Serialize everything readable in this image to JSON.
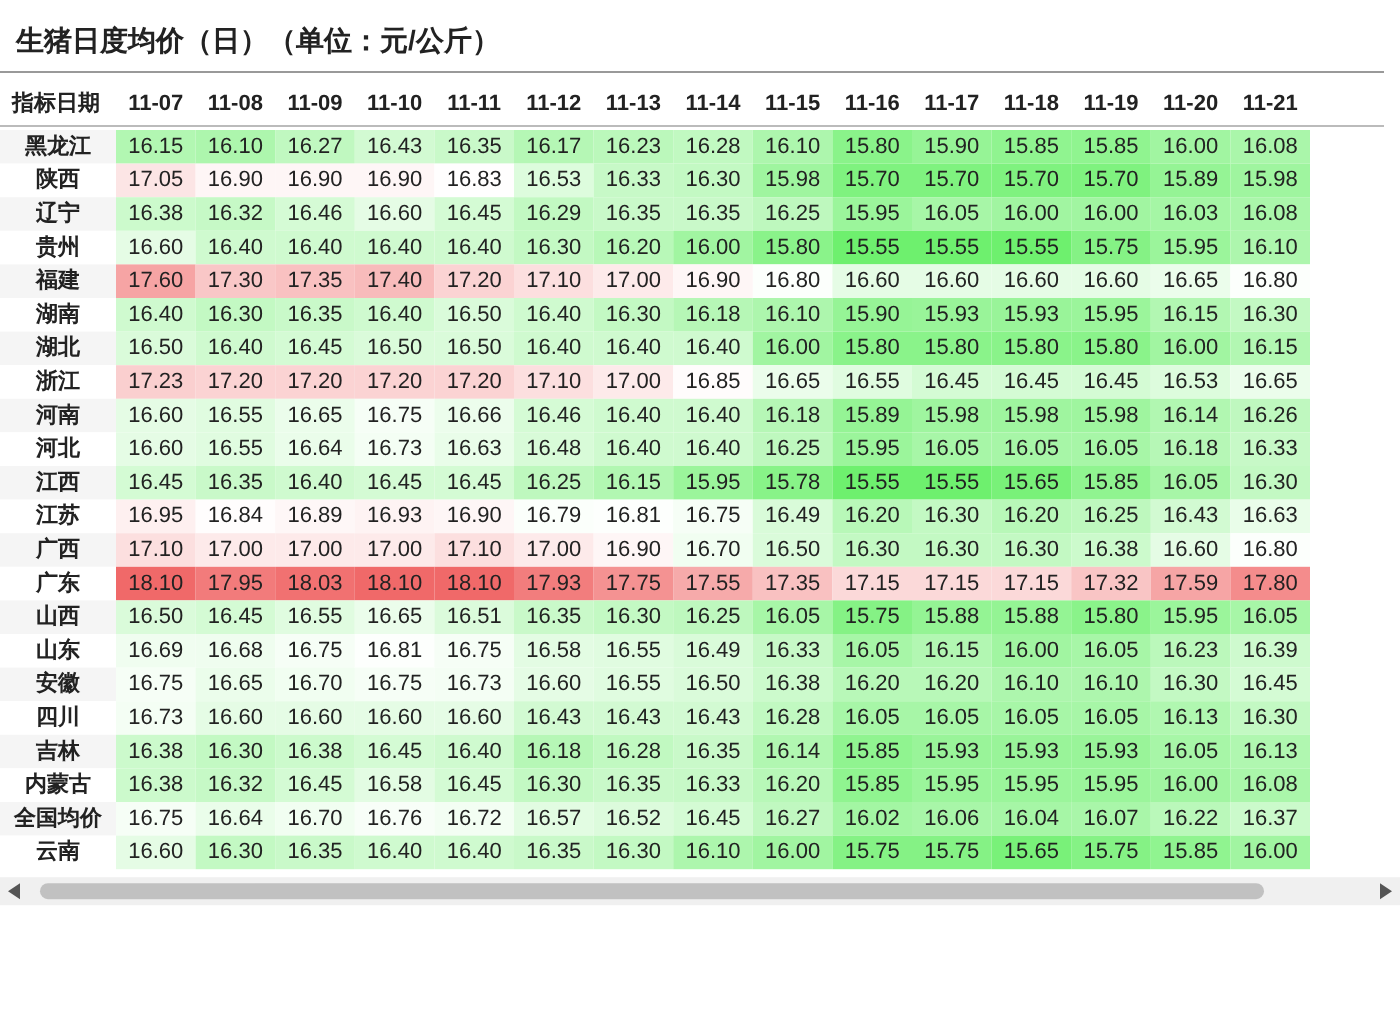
{
  "chart_data": {
    "type": "heatmap",
    "title": "生猪日度均价（日）（单位：元/公斤）",
    "ylabel": "指标日期",
    "data_labels": true,
    "categories": [
      "11-07",
      "11-08",
      "11-09",
      "11-10",
      "11-11",
      "11-12",
      "11-13",
      "11-14",
      "11-15",
      "11-16",
      "11-17",
      "11-18",
      "11-19",
      "11-20",
      "11-21"
    ],
    "y_categories": [
      "黑龙江",
      "陕西",
      "辽宁",
      "贵州",
      "福建",
      "湖南",
      "湖北",
      "浙江",
      "河南",
      "河北",
      "江西",
      "江苏",
      "广西",
      "广东",
      "山西",
      "山东",
      "安徽",
      "四川",
      "吉林",
      "内蒙古",
      "全国均价",
      "云南"
    ],
    "cells": [
      [
        16.15,
        16.1,
        16.27,
        16.43,
        16.35,
        16.17,
        16.23,
        16.28,
        16.1,
        15.8,
        15.9,
        15.85,
        15.85,
        16.0,
        16.08
      ],
      [
        17.05,
        16.9,
        16.9,
        16.9,
        16.83,
        16.53,
        16.33,
        16.3,
        15.98,
        15.7,
        15.7,
        15.7,
        15.7,
        15.89,
        15.98
      ],
      [
        16.38,
        16.32,
        16.46,
        16.6,
        16.45,
        16.29,
        16.35,
        16.35,
        16.25,
        15.95,
        16.05,
        16.0,
        16.0,
        16.03,
        16.08
      ],
      [
        16.6,
        16.4,
        16.4,
        16.4,
        16.4,
        16.3,
        16.2,
        16.0,
        15.8,
        15.55,
        15.55,
        15.55,
        15.75,
        15.95,
        16.1
      ],
      [
        17.6,
        17.3,
        17.35,
        17.4,
        17.2,
        17.1,
        17.0,
        16.9,
        16.8,
        16.6,
        16.6,
        16.6,
        16.6,
        16.65,
        16.8
      ],
      [
        16.4,
        16.3,
        16.35,
        16.4,
        16.5,
        16.4,
        16.3,
        16.18,
        16.1,
        15.9,
        15.93,
        15.93,
        15.95,
        16.15,
        16.3
      ],
      [
        16.5,
        16.4,
        16.45,
        16.5,
        16.5,
        16.4,
        16.4,
        16.4,
        16.0,
        15.8,
        15.8,
        15.8,
        15.8,
        16.0,
        16.15
      ],
      [
        17.23,
        17.2,
        17.2,
        17.2,
        17.2,
        17.1,
        17.0,
        16.85,
        16.65,
        16.55,
        16.45,
        16.45,
        16.45,
        16.53,
        16.65
      ],
      [
        16.6,
        16.55,
        16.65,
        16.75,
        16.66,
        16.46,
        16.4,
        16.4,
        16.18,
        15.89,
        15.98,
        15.98,
        15.98,
        16.14,
        16.26
      ],
      [
        16.6,
        16.55,
        16.64,
        16.73,
        16.63,
        16.48,
        16.4,
        16.4,
        16.25,
        15.95,
        16.05,
        16.05,
        16.05,
        16.18,
        16.33
      ],
      [
        16.45,
        16.35,
        16.4,
        16.45,
        16.45,
        16.25,
        16.15,
        15.95,
        15.78,
        15.55,
        15.55,
        15.65,
        15.85,
        16.05,
        16.3
      ],
      [
        16.95,
        16.84,
        16.89,
        16.93,
        16.9,
        16.79,
        16.81,
        16.75,
        16.49,
        16.2,
        16.3,
        16.2,
        16.25,
        16.43,
        16.63
      ],
      [
        17.1,
        17.0,
        17.0,
        17.0,
        17.1,
        17.0,
        16.9,
        16.7,
        16.5,
        16.3,
        16.3,
        16.3,
        16.38,
        16.6,
        16.8
      ],
      [
        18.1,
        17.95,
        18.03,
        18.1,
        18.1,
        17.93,
        17.75,
        17.55,
        17.35,
        17.15,
        17.15,
        17.15,
        17.32,
        17.59,
        17.8
      ],
      [
        16.5,
        16.45,
        16.55,
        16.65,
        16.51,
        16.35,
        16.3,
        16.25,
        16.05,
        15.75,
        15.88,
        15.88,
        15.8,
        15.95,
        16.05
      ],
      [
        16.69,
        16.68,
        16.75,
        16.81,
        16.75,
        16.58,
        16.55,
        16.49,
        16.33,
        16.05,
        16.15,
        16.0,
        16.05,
        16.23,
        16.39
      ],
      [
        16.75,
        16.65,
        16.7,
        16.75,
        16.73,
        16.6,
        16.55,
        16.5,
        16.38,
        16.2,
        16.2,
        16.1,
        16.1,
        16.3,
        16.45
      ],
      [
        16.73,
        16.6,
        16.6,
        16.6,
        16.6,
        16.43,
        16.43,
        16.43,
        16.28,
        16.05,
        16.05,
        16.05,
        16.05,
        16.13,
        16.3
      ],
      [
        16.38,
        16.3,
        16.38,
        16.45,
        16.4,
        16.18,
        16.28,
        16.35,
        16.14,
        15.85,
        15.93,
        15.93,
        15.93,
        16.05,
        16.13
      ],
      [
        16.38,
        16.32,
        16.45,
        16.58,
        16.45,
        16.3,
        16.35,
        16.33,
        16.2,
        15.85,
        15.95,
        15.95,
        15.95,
        16.0,
        16.08
      ],
      [
        16.75,
        16.64,
        16.7,
        16.76,
        16.72,
        16.57,
        16.52,
        16.45,
        16.27,
        16.02,
        16.06,
        16.04,
        16.07,
        16.22,
        16.37
      ],
      [
        16.6,
        16.3,
        16.35,
        16.4,
        16.4,
        16.35,
        16.3,
        16.1,
        16.0,
        15.75,
        15.75,
        15.65,
        15.75,
        15.85,
        16.0
      ]
    ],
    "cell_labels": [
      [
        "16.15",
        "16.10",
        "16.27",
        "16.43",
        "16.35",
        "16.17",
        "16.23",
        "16.28",
        "16.10",
        "15.80",
        "15.90",
        "15.85",
        "15.85",
        "16.00",
        "16.08"
      ],
      [
        "17.05",
        "16.90",
        "16.90",
        "16.90",
        "16.83",
        "16.53",
        "16.33",
        "16.30",
        "15.98",
        "15.70",
        "15.70",
        "15.70",
        "15.70",
        "15.89",
        "15.98"
      ],
      [
        "16.38",
        "16.32",
        "16.46",
        "16.60",
        "16.45",
        "16.29",
        "16.35",
        "16.35",
        "16.25",
        "15.95",
        "16.05",
        "16.00",
        "16.00",
        "16.03",
        "16.08"
      ],
      [
        "16.60",
        "16.40",
        "16.40",
        "16.40",
        "16.40",
        "16.30",
        "16.20",
        "16.00",
        "15.80",
        "15.55",
        "15.55",
        "15.55",
        "15.75",
        "15.95",
        "16.10"
      ],
      [
        "17.60",
        "17.30",
        "17.35",
        "17.40",
        "17.20",
        "17.10",
        "17.00",
        "16.90",
        "16.80",
        "16.60",
        "16.60",
        "16.60",
        "16.60",
        "16.65",
        "16.80"
      ],
      [
        "16.40",
        "16.30",
        "16.35",
        "16.40",
        "16.50",
        "16.40",
        "16.30",
        "16.18",
        "16.10",
        "15.90",
        "15.93",
        "15.93",
        "15.95",
        "16.15",
        "16.30"
      ],
      [
        "16.50",
        "16.40",
        "16.45",
        "16.50",
        "16.50",
        "16.40",
        "16.40",
        "16.40",
        "16.00",
        "15.80",
        "15.80",
        "15.80",
        "15.80",
        "16.00",
        "16.15"
      ],
      [
        "17.23",
        "17.20",
        "17.20",
        "17.20",
        "17.20",
        "17.10",
        "17.00",
        "16.85",
        "16.65",
        "16.55",
        "16.45",
        "16.45",
        "16.45",
        "16.53",
        "16.65"
      ],
      [
        "16.60",
        "16.55",
        "16.65",
        "16.75",
        "16.66",
        "16.46",
        "16.40",
        "16.40",
        "16.18",
        "15.89",
        "15.98",
        "15.98",
        "15.98",
        "16.14",
        "16.26"
      ],
      [
        "16.60",
        "16.55",
        "16.64",
        "16.73",
        "16.63",
        "16.48",
        "16.40",
        "16.40",
        "16.25",
        "15.95",
        "16.05",
        "16.05",
        "16.05",
        "16.18",
        "16.33"
      ],
      [
        "16.45",
        "16.35",
        "16.40",
        "16.45",
        "16.45",
        "16.25",
        "16.15",
        "15.95",
        "15.78",
        "15.55",
        "15.55",
        "15.65",
        "15.85",
        "16.05",
        "16.30"
      ],
      [
        "16.95",
        "16.84",
        "16.89",
        "16.93",
        "16.90",
        "16.79",
        "16.81",
        "16.75",
        "16.49",
        "16.20",
        "16.30",
        "16.20",
        "16.25",
        "16.43",
        "16.63"
      ],
      [
        "17.10",
        "17.00",
        "17.00",
        "17.00",
        "17.10",
        "17.00",
        "16.90",
        "16.70",
        "16.50",
        "16.30",
        "16.30",
        "16.30",
        "16.38",
        "16.60",
        "16.80"
      ],
      [
        "18.10",
        "17.95",
        "18.03",
        "18.10",
        "18.10",
        "17.93",
        "17.75",
        "17.55",
        "17.35",
        "17.15",
        "17.15",
        "17.15",
        "17.32",
        "17.59",
        "17.80"
      ],
      [
        "16.50",
        "16.45",
        "16.55",
        "16.65",
        "16.51",
        "16.35",
        "16.30",
        "16.25",
        "16.05",
        "15.75",
        "15.88",
        "15.88",
        "15.80",
        "15.95",
        "16.05"
      ],
      [
        "16.69",
        "16.68",
        "16.75",
        "16.81",
        "16.75",
        "16.58",
        "16.55",
        "16.49",
        "16.33",
        "16.05",
        "16.15",
        "16.00",
        "16.05",
        "16.23",
        "16.39"
      ],
      [
        "16.75",
        "16.65",
        "16.70",
        "16.75",
        "16.73",
        "16.60",
        "16.55",
        "16.50",
        "16.38",
        "16.20",
        "16.20",
        "16.10",
        "16.10",
        "16.30",
        "16.45"
      ],
      [
        "16.73",
        "16.60",
        "16.60",
        "16.60",
        "16.60",
        "16.43",
        "16.43",
        "16.43",
        "16.28",
        "16.05",
        "16.05",
        "16.05",
        "16.05",
        "16.13",
        "16.30"
      ],
      [
        "16.38",
        "16.30",
        "16.38",
        "16.45",
        "16.40",
        "16.18",
        "16.28",
        "16.35",
        "16.14",
        "15.85",
        "15.93",
        "15.93",
        "15.93",
        "16.05",
        "16.13"
      ],
      [
        "16.38",
        "16.32",
        "16.45",
        "16.58",
        "16.45",
        "16.30",
        "16.35",
        "16.33",
        "16.20",
        "15.85",
        "15.95",
        "15.95",
        "15.95",
        "16.00",
        "16.08"
      ],
      [
        "16.75",
        "16.64",
        "16.70",
        "16.76",
        "16.72",
        "16.57",
        "16.52",
        "16.45",
        "16.27",
        "16.02",
        "16.06",
        "16.04",
        "16.07",
        "16.22",
        "16.37"
      ],
      [
        "16.60",
        "16.30",
        "16.35",
        "16.40",
        "16.40",
        "16.35",
        "16.30",
        "16.10",
        "16.00",
        "15.75",
        "15.75",
        "15.65",
        "15.75",
        "15.85",
        "16.00"
      ]
    ]
  }
}
